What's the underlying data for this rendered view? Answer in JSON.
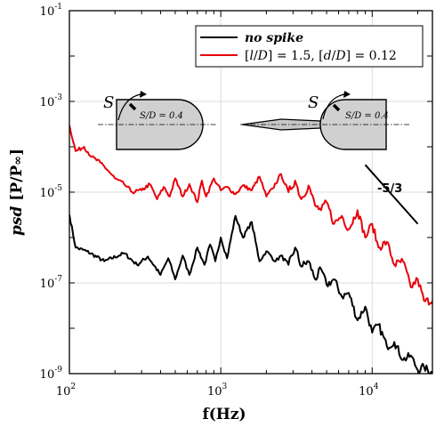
{
  "chart_data": {
    "type": "line",
    "xlabel": "f(Hz)",
    "ylabel": "psd [P/P∞]",
    "xscale": "log",
    "yscale": "log",
    "xlim": [
      100,
      25000
    ],
    "ylim": [
      1e-09,
      0.1
    ],
    "grid": true,
    "legend_position": "top-right",
    "x_ticks": [
      {
        "value": 100,
        "base": "10",
        "exp": "2"
      },
      {
        "value": 1000,
        "base": "10",
        "exp": "3"
      },
      {
        "value": 10000,
        "base": "10",
        "exp": "4"
      }
    ],
    "y_ticks": [
      {
        "value": 1e-09,
        "base": "10",
        "exp": "-9"
      },
      {
        "value": 1e-07,
        "base": "10",
        "exp": "-7"
      },
      {
        "value": 1e-05,
        "base": "10",
        "exp": "-5"
      },
      {
        "value": 0.001,
        "base": "10",
        "exp": "-3"
      },
      {
        "value": 0.1,
        "base": "10",
        "exp": "-1"
      }
    ],
    "series": [
      {
        "name": "no spike",
        "color": "#000000",
        "x": [
          100,
          110,
          130,
          170,
          230,
          280,
          330,
          400,
          450,
          500,
          560,
          620,
          700,
          780,
          850,
          920,
          1000,
          1100,
          1250,
          1400,
          1600,
          1800,
          2000,
          2300,
          2500,
          2800,
          3100,
          3400,
          3800,
          4200,
          4600,
          5000,
          5600,
          6300,
          7000,
          8000,
          9000,
          10000,
          11000,
          12500,
          14000,
          16000,
          18000,
          20000,
          22000,
          25000
        ],
        "y": [
          3.2e-06,
          6e-07,
          5e-07,
          3e-07,
          4.5e-07,
          2.5e-07,
          3.8e-07,
          1.5e-07,
          3.5e-07,
          1.2e-07,
          4e-07,
          1.5e-07,
          6e-07,
          2.5e-07,
          7e-07,
          3e-07,
          1e-06,
          3.5e-07,
          3e-06,
          1e-06,
          2.2e-06,
          3e-07,
          5e-07,
          3e-07,
          4e-07,
          2.5e-07,
          6e-07,
          2.3e-07,
          3e-07,
          1.2e-07,
          2e-07,
          9e-08,
          1.2e-07,
          5e-08,
          6e-08,
          1.5e-08,
          3e-08,
          8e-09,
          1.2e-08,
          4e-09,
          5e-09,
          2e-09,
          2.5e-09,
          1.2e-09,
          1.4e-09,
          1e-09
        ]
      },
      {
        "name": "[l/D] = 1.5, [d/D] = 0.12",
        "color": "#e8000b",
        "x": [
          100,
          110,
          125,
          140,
          160,
          180,
          200,
          230,
          260,
          300,
          340,
          380,
          420,
          460,
          500,
          560,
          620,
          700,
          750,
          800,
          900,
          1000,
          1100,
          1250,
          1400,
          1600,
          1800,
          2000,
          2200,
          2500,
          2800,
          3100,
          3400,
          3800,
          4200,
          4600,
          5000,
          5600,
          6300,
          7000,
          8000,
          9000,
          10000,
          11000,
          12500,
          14000,
          16000,
          18000,
          20000,
          22000,
          25000
        ],
        "y": [
          0.0003,
          8e-05,
          0.0001,
          6e-05,
          4.5e-05,
          3e-05,
          2e-05,
          1.5e-05,
          1e-05,
          1.1e-05,
          1.5e-05,
          7e-06,
          1.3e-05,
          8e-06,
          2e-05,
          8e-06,
          1.5e-05,
          6e-06,
          1.8e-05,
          8e-06,
          2e-05,
          1.1e-05,
          1.3e-05,
          9e-06,
          1.4e-05,
          1.1e-05,
          2.2e-05,
          8e-06,
          1.2e-05,
          2.5e-05,
          1e-05,
          1.8e-05,
          7e-06,
          1.4e-05,
          5e-06,
          4e-06,
          6e-06,
          2e-06,
          3e-06,
          1.5e-06,
          4e-06,
          1e-06,
          2e-06,
          6e-07,
          8e-07,
          2.5e-07,
          3e-07,
          8e-08,
          1.2e-07,
          4e-08,
          4e-08
        ]
      }
    ],
    "annotations": {
      "slope_label": "-5/3",
      "slope_line": {
        "x": [
          9000,
          20000
        ],
        "y": [
          4e-05,
          2e-06
        ]
      },
      "inset_left": {
        "S": "S",
        "ratio": "S/D = 0.4"
      },
      "inset_right": {
        "S": "S",
        "ratio": "S/D = 0.4"
      }
    }
  }
}
